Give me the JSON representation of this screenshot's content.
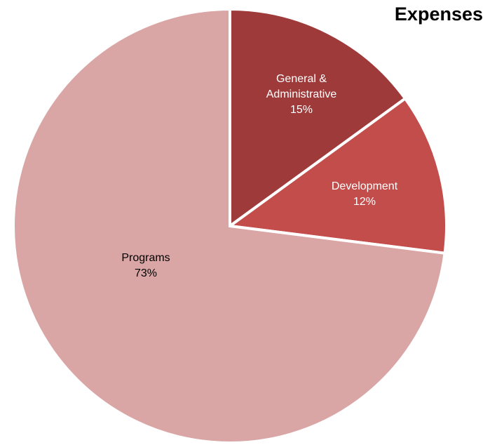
{
  "chart_data": {
    "type": "pie",
    "title": "Expenses",
    "slices": [
      {
        "label": "General & Administrative",
        "label_lines": [
          "General &",
          "Administrative"
        ],
        "value": 15,
        "display": "15%",
        "color": "#9e3b3a",
        "text_color": "#ffffff"
      },
      {
        "label": "Development",
        "label_lines": [
          "Development"
        ],
        "value": 12,
        "display": "12%",
        "color": "#c24d4b",
        "text_color": "#ffffff"
      },
      {
        "label": "Programs",
        "label_lines": [
          "Programs"
        ],
        "value": 73,
        "display": "73%",
        "color": "#d9a6a5",
        "text_color": "#000000"
      }
    ],
    "start": "12 o'clock",
    "direction": "clockwise",
    "separator_color": "#ffffff"
  }
}
